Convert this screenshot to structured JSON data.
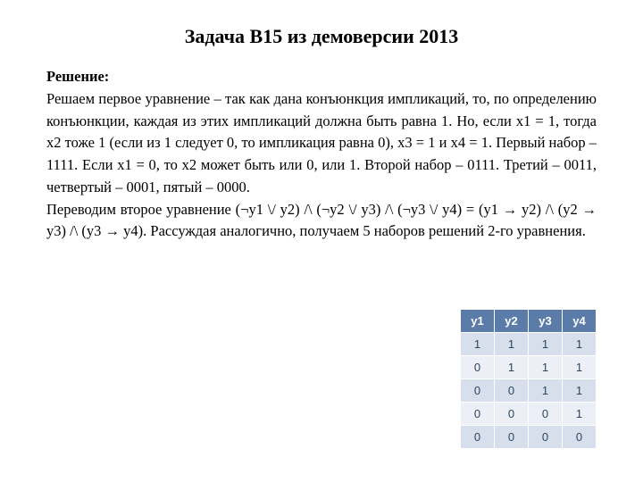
{
  "title": "Задача B15 из демоверсии 2013",
  "solution_label": "Решение:",
  "paragraph1": "Решаем первое уравнение – так как дана конъюнкция импликаций, то, по определению конъюнкции, каждая из этих импликаций должна быть равна 1. Но, если x1 = 1, тогда x2 тоже 1 (если из 1 следует 0, то импликация равна 0), x3 = 1 и x4 = 1. Первый набор – 1111. Если x1 = 0, то x2 может быть или 0, или 1. Второй набор – 0111. Третий – 0011, четвертый – 0001, пятый – 0000.",
  "paragraph2": "Переводим второе уравнение  (¬y1 \\/ y2) /\\ (¬y2 \\/ y3) /\\ (¬y3 \\/ y4) = (y1 → y2) /\\ (y2 → y3) /\\ (y3 → y4). Рассуждая аналогично, получаем 5 наборов решений 2-го уравнения.",
  "table": {
    "headers": [
      "y1",
      "y2",
      "y3",
      "y4"
    ],
    "rows": [
      [
        "1",
        "1",
        "1",
        "1"
      ],
      [
        "0",
        "1",
        "1",
        "1"
      ],
      [
        "0",
        "0",
        "1",
        "1"
      ],
      [
        "0",
        "0",
        "0",
        "1"
      ],
      [
        "0",
        "0",
        "0",
        "0"
      ]
    ],
    "header_bg": "#5b7ba8",
    "header_color": "#ffffff",
    "row_odd_bg": "#d7dfec",
    "row_even_bg": "#ecf0f6",
    "cell_color": "#2d4560"
  }
}
